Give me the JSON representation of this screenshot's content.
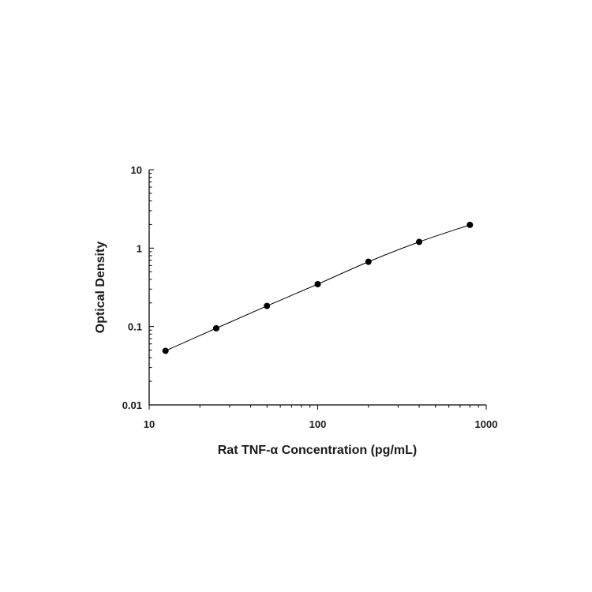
{
  "chart_data": {
    "type": "scatter",
    "title": "",
    "xlabel": "Rat TNF-α Concentration (pg/mL)",
    "ylabel": "Optical Density",
    "x_scale": "log",
    "y_scale": "log",
    "xlim": [
      10,
      1000
    ],
    "ylim": [
      0.01,
      10
    ],
    "x_ticks": [
      "10",
      "100",
      "1000"
    ],
    "y_ticks": [
      "0.01",
      "0.1",
      "1",
      "10"
    ],
    "grid": false,
    "legend": "none",
    "series": [
      {
        "x": [
          12.5,
          25,
          50,
          100,
          200,
          400,
          800
        ],
        "y": [
          0.049,
          0.095,
          0.183,
          0.347,
          0.67,
          1.2,
          1.98
        ],
        "marker": "circle",
        "color": "#000000",
        "fit_curve": true
      }
    ]
  }
}
